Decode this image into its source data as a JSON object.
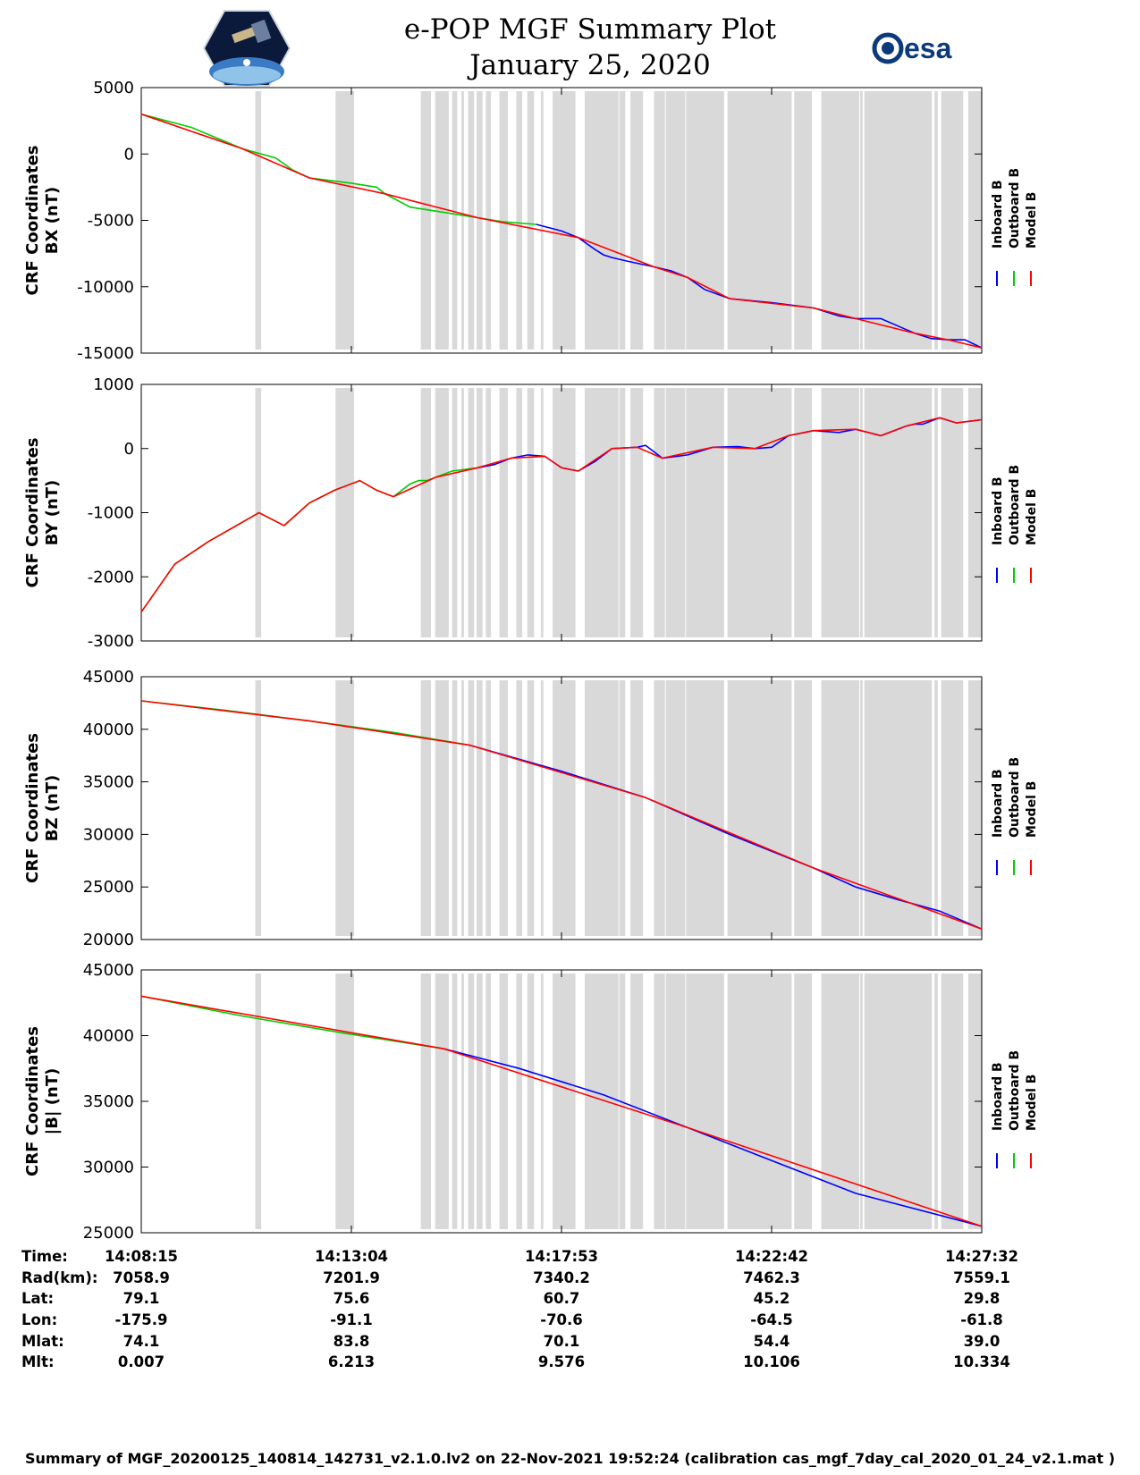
{
  "header": {
    "title": "e-POP MGF Summary Plot",
    "date": "January 25, 2020",
    "left_logo": "cassiope-mission-logo",
    "right_logo": "esa-logo",
    "right_logo_text": "esa"
  },
  "colors": {
    "inboard": "#0000ff",
    "outboard": "#00cc00",
    "model": "#ff0000",
    "gap_shade": "#d9d9d9"
  },
  "legend": [
    "Inboard B",
    "Outboard B",
    "Model B"
  ],
  "gaps": [
    [
      0.259,
      0.266
    ],
    [
      0.354,
      0.376
    ],
    [
      0.455,
      0.467
    ],
    [
      0.472,
      0.488
    ],
    [
      0.492,
      0.498
    ],
    [
      0.503,
      0.506
    ],
    [
      0.511,
      0.518
    ],
    [
      0.521,
      0.528
    ],
    [
      0.532,
      0.538
    ],
    [
      0.548,
      0.558
    ],
    [
      0.568,
      0.575
    ],
    [
      0.581,
      0.589
    ],
    [
      0.597,
      0.6
    ],
    [
      0.611,
      0.638
    ],
    [
      0.649,
      0.689
    ],
    [
      0.69,
      0.697
    ],
    [
      0.703,
      0.718
    ],
    [
      0.731,
      0.744
    ],
    [
      0.745,
      0.768
    ],
    [
      0.769,
      0.814
    ],
    [
      0.818,
      0.894
    ],
    [
      0.897,
      0.918
    ],
    [
      0.929,
      0.974
    ],
    [
      0.975,
      0.978
    ],
    [
      0.98,
      1.06
    ],
    [
      1.063,
      1.067
    ],
    [
      1.071,
      1.097
    ],
    [
      1.103,
      1.119
    ]
  ],
  "chart_data": [
    {
      "type": "line",
      "ylabel": [
        "CRF Coordinates",
        "BX (nT)"
      ],
      "ylim": [
        -15000,
        5000
      ],
      "yticks": [
        5000,
        0,
        -5000,
        -10000,
        -15000
      ],
      "ytick_labels": [
        "5000",
        "0",
        "-5000",
        "-10000",
        "-15000"
      ],
      "series": [
        {
          "name": "Inboard B",
          "x": [
            0.47,
            0.5,
            0.52,
            0.54,
            0.55,
            0.56,
            0.58,
            0.61,
            0.63,
            0.65,
            0.67,
            0.7,
            0.75,
            0.8,
            0.83,
            0.85,
            0.88,
            0.92,
            0.94,
            0.96,
            0.98,
            1.0
          ],
          "y": [
            -5300,
            -5800,
            -6300,
            -7200,
            -7600,
            -7800,
            -8100,
            -8500,
            -8800,
            -9300,
            -10200,
            -10900,
            -11200,
            -11600,
            -12200,
            -12400,
            -12400,
            -13500,
            -13900,
            -14000,
            -14000,
            -14600
          ]
        },
        {
          "name": "Outboard B",
          "x": [
            0.0,
            0.06,
            0.12,
            0.16,
            0.18,
            0.2,
            0.25,
            0.28,
            0.29,
            0.32,
            0.36,
            0.4,
            0.43,
            0.47
          ],
          "y": [
            3000,
            2000,
            400,
            -300,
            -1200,
            -1800,
            -2200,
            -2500,
            -3000,
            -4000,
            -4400,
            -4800,
            -5100,
            -5300
          ]
        },
        {
          "name": "Model B",
          "x": [
            0.0,
            0.12,
            0.2,
            0.29,
            0.4,
            0.52,
            0.61,
            0.65,
            0.7,
            0.8,
            0.85,
            0.92,
            0.96,
            1.0
          ],
          "y": [
            3000,
            400,
            -1800,
            -3000,
            -4800,
            -6300,
            -8500,
            -9300,
            -10900,
            -11600,
            -12400,
            -13500,
            -14000,
            -14600
          ]
        }
      ]
    },
    {
      "type": "line",
      "ylabel": [
        "CRF Coordinates",
        "BY (nT)"
      ],
      "ylim": [
        -3000,
        1000
      ],
      "yticks": [
        1000,
        0,
        -1000,
        -2000,
        -3000
      ],
      "ytick_labels": [
        "1000",
        "0",
        "-1000",
        "-2000",
        "-3000"
      ],
      "series": [
        {
          "name": "Inboard B",
          "x": [
            0.4,
            0.42,
            0.44,
            0.46,
            0.48,
            0.5,
            0.52,
            0.54,
            0.56,
            0.59,
            0.6,
            0.62,
            0.65,
            0.68,
            0.71,
            0.73,
            0.75,
            0.77,
            0.8,
            0.83,
            0.85,
            0.88,
            0.91,
            0.92,
            0.93,
            0.95,
            0.97,
            1.0
          ],
          "y": [
            -300,
            -250,
            -150,
            -100,
            -120,
            -300,
            -350,
            -200,
            0,
            20,
            50,
            -150,
            -100,
            20,
            30,
            0,
            20,
            200,
            280,
            250,
            300,
            200,
            350,
            380,
            380,
            480,
            400,
            450
          ]
        },
        {
          "name": "Outboard B",
          "x": [
            0.0,
            0.04,
            0.08,
            0.12,
            0.14,
            0.17,
            0.2,
            0.23,
            0.26,
            0.28,
            0.3,
            0.32,
            0.33,
            0.34,
            0.35,
            0.37,
            0.4
          ],
          "y": [
            -2550,
            -1800,
            -1450,
            -1150,
            -1000,
            -1200,
            -850,
            -650,
            -500,
            -650,
            -750,
            -550,
            -500,
            -500,
            -450,
            -350,
            -300
          ]
        },
        {
          "name": "Model B",
          "x": [
            0.0,
            0.04,
            0.08,
            0.12,
            0.14,
            0.17,
            0.2,
            0.23,
            0.26,
            0.28,
            0.3,
            0.35,
            0.4,
            0.44,
            0.48,
            0.5,
            0.52,
            0.56,
            0.59,
            0.62,
            0.68,
            0.73,
            0.77,
            0.8,
            0.85,
            0.88,
            0.91,
            0.95,
            0.97,
            1.0
          ],
          "y": [
            -2550,
            -1800,
            -1450,
            -1150,
            -1000,
            -1200,
            -850,
            -650,
            -500,
            -650,
            -750,
            -450,
            -300,
            -150,
            -120,
            -300,
            -350,
            0,
            20,
            -150,
            20,
            0,
            200,
            280,
            300,
            200,
            350,
            480,
            400,
            450
          ]
        }
      ]
    },
    {
      "type": "line",
      "ylabel": [
        "CRF Coordinates",
        "BZ (nT)"
      ],
      "ylim": [
        20000,
        45000
      ],
      "yticks": [
        45000,
        40000,
        35000,
        30000,
        25000,
        20000
      ],
      "ytick_labels": [
        "45000",
        "40000",
        "35000",
        "30000",
        "25000",
        "20000"
      ],
      "series": [
        {
          "name": "Inboard B",
          "x": [
            0.39,
            0.5,
            0.6,
            0.7,
            0.8,
            0.85,
            0.9,
            0.95,
            1.0
          ],
          "y": [
            38500,
            36000,
            33500,
            30000,
            26800,
            25000,
            23800,
            22700,
            21000
          ]
        },
        {
          "name": "Outboard B",
          "x": [
            0.0,
            0.1,
            0.2,
            0.3,
            0.39
          ],
          "y": [
            42700,
            41800,
            40800,
            39700,
            38500
          ]
        },
        {
          "name": "Model B",
          "x": [
            0.0,
            0.2,
            0.39,
            0.6,
            0.8,
            1.0
          ],
          "y": [
            42700,
            40800,
            38500,
            33500,
            26800,
            21000
          ]
        }
      ]
    },
    {
      "type": "line",
      "ylabel": [
        "CRF Coordinates",
        "|B| (nT)"
      ],
      "ylim": [
        25000,
        45000
      ],
      "yticks": [
        45000,
        40000,
        35000,
        30000,
        25000
      ],
      "ytick_labels": [
        "45000",
        "40000",
        "35000",
        "30000",
        "25000"
      ],
      "series": [
        {
          "name": "Inboard B",
          "x": [
            0.36,
            0.45,
            0.55,
            0.65,
            0.75,
            0.85,
            1.0
          ],
          "y": [
            39000,
            37500,
            35500,
            33000,
            30500,
            28000,
            25500
          ]
        },
        {
          "name": "Outboard B",
          "x": [
            0.0,
            0.12,
            0.24,
            0.36
          ],
          "y": [
            43000,
            41500,
            40200,
            39000
          ]
        },
        {
          "name": "Model B",
          "x": [
            0.0,
            0.36,
            0.65,
            1.0
          ],
          "y": [
            43000,
            39000,
            33000,
            25500
          ]
        }
      ]
    }
  ],
  "ephemeris": {
    "labels": [
      "Time:",
      "Rad(km):",
      "Lat:",
      "Lon:",
      "Mlat:",
      "Mlt:"
    ],
    "columns": [
      [
        "14:08:15",
        "7058.9",
        "79.1",
        "-175.9",
        "74.1",
        "0.007"
      ],
      [
        "14:13:04",
        "7201.9",
        "75.6",
        "-91.1",
        "83.8",
        "6.213"
      ],
      [
        "14:17:53",
        "7340.2",
        "60.7",
        "-70.6",
        "70.1",
        "9.576"
      ],
      [
        "14:22:42",
        "7462.3",
        "45.2",
        "-64.5",
        "54.4",
        "10.106"
      ],
      [
        "14:27:32",
        "7559.1",
        "29.8",
        "-61.8",
        "39.0",
        "10.334"
      ]
    ]
  },
  "footer": "Summary of MGF_20200125_140814_142731_v2.1.0.lv2 on 22-Nov-2021 19:52:24 (calibration cas_mgf_7day_cal_2020_01_24_v2.1.mat )"
}
